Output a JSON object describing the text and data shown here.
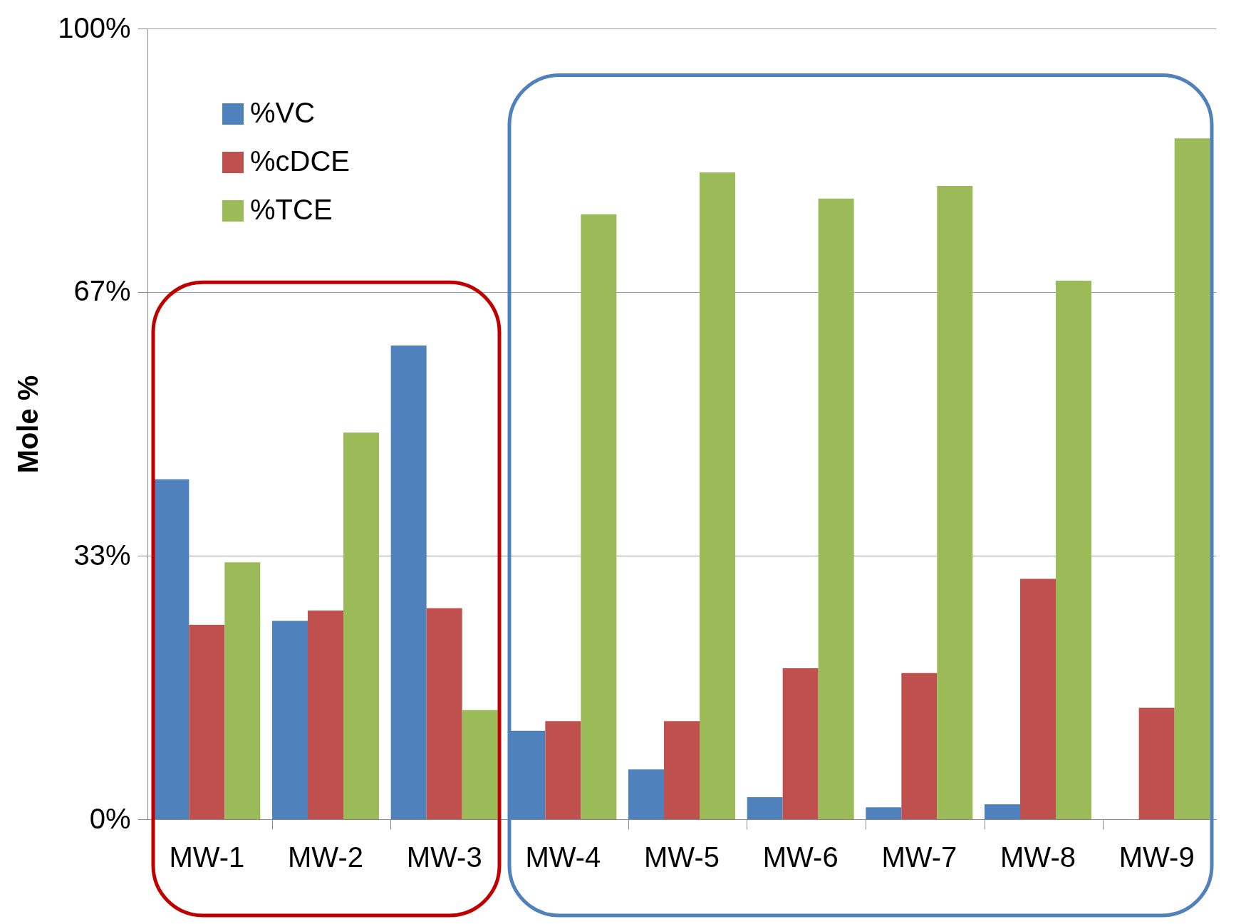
{
  "chart_data": {
    "type": "bar",
    "ylabel": "Mole %",
    "categories": [
      "MW-1",
      "MW-2",
      "MW-3",
      "MW-4",
      "MW-5",
      "MW-6",
      "MW-7",
      "MW-8",
      "MW-9"
    ],
    "series": [
      {
        "name": "%VC",
        "color": "#4f81bd",
        "values": [
          43.0,
          25.1,
          59.9,
          11.2,
          6.3,
          2.8,
          1.5,
          1.9,
          0
        ]
      },
      {
        "name": "%cDCE",
        "color": "#c0504d",
        "values": [
          24.6,
          26.4,
          26.7,
          12.4,
          12.4,
          19.1,
          18.5,
          30.4,
          14.1
        ]
      },
      {
        "name": "%TCE",
        "color": "#9bbb59",
        "values": [
          32.5,
          48.9,
          13.8,
          76.5,
          81.8,
          78.5,
          80.1,
          68.1,
          86.1
        ]
      }
    ],
    "ylim": [
      0,
      100
    ],
    "yticks": [
      {
        "value": 0,
        "label": "0%"
      },
      {
        "value": 33.33,
        "label": "33%"
      },
      {
        "value": 66.67,
        "label": "67%"
      },
      {
        "value": 100,
        "label": "100%"
      }
    ],
    "grid": "y",
    "legend": "top left"
  }
}
